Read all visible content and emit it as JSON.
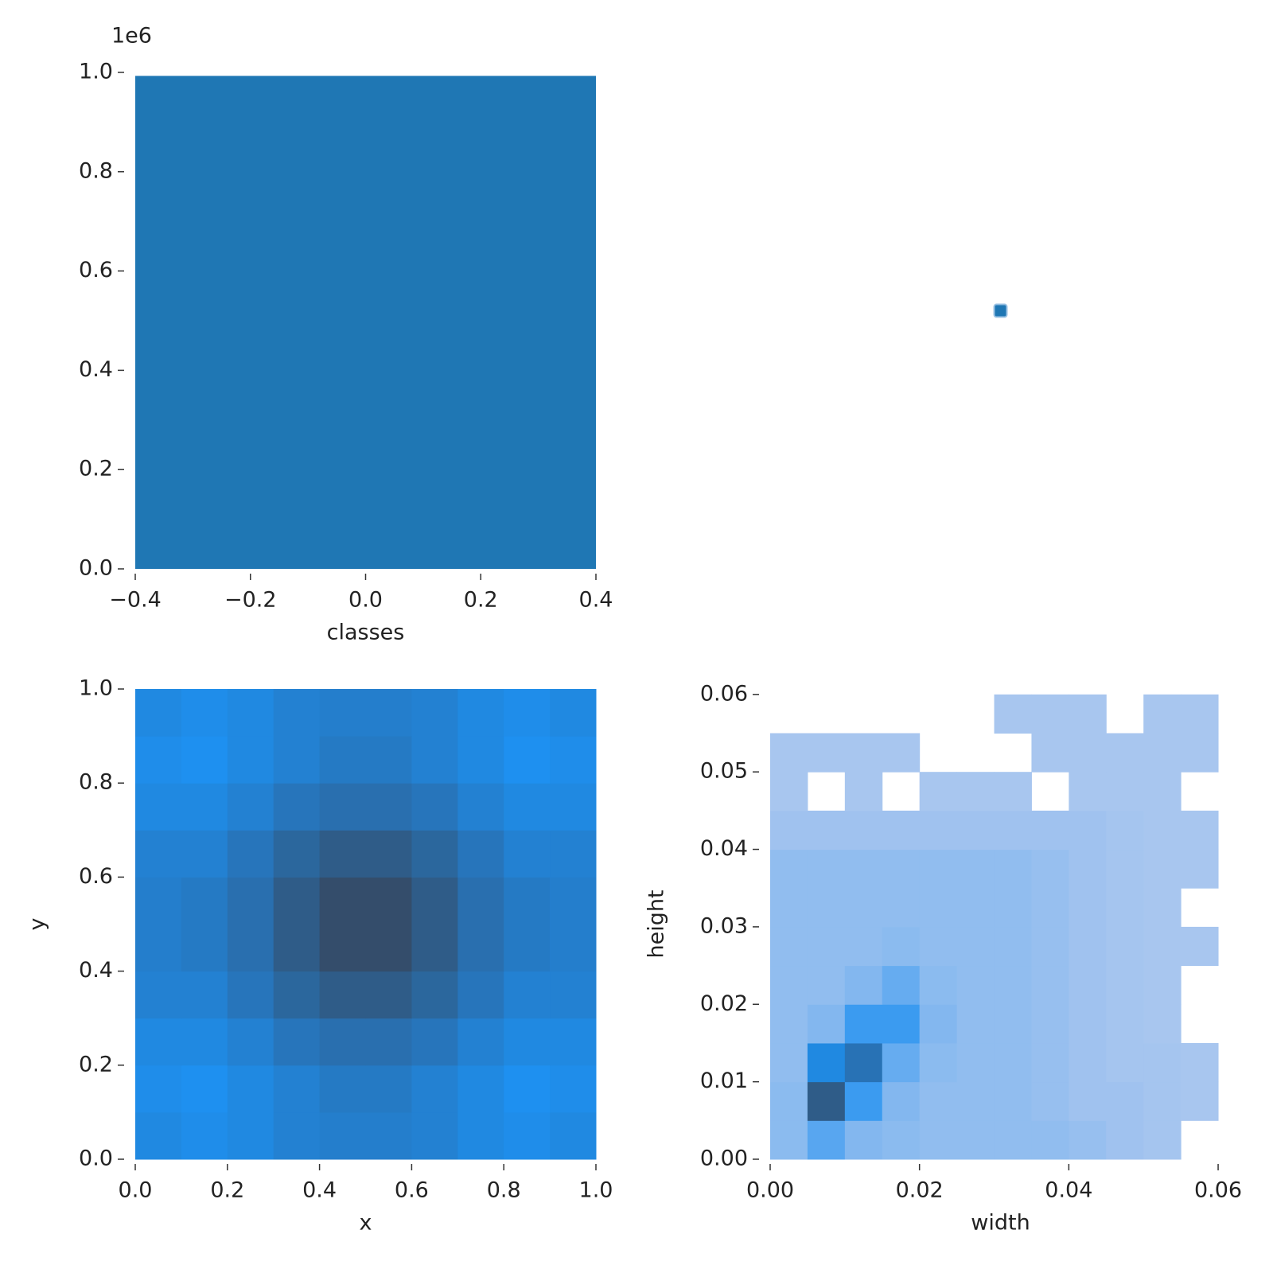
{
  "chart_data": [
    {
      "type": "bar",
      "x": [
        0
      ],
      "values": [
        993000
      ],
      "bar_width": 0.8,
      "color": "#1f77b4",
      "x_label": "classes",
      "y_offset_label": "1e6",
      "xlim": [
        -0.4,
        0.4
      ],
      "xticks": [
        {
          "value": -0.4,
          "label": "−0.4"
        },
        {
          "value": -0.2,
          "label": "−0.2"
        },
        {
          "value": 0,
          "label": "0.0"
        },
        0.2,
        0.4
      ],
      "ylim": [
        0,
        1000000
      ],
      "yticks": [
        {
          "value": 0,
          "label": "0.0"
        },
        {
          "value": 200000,
          "label": "0.2"
        },
        {
          "value": 400000,
          "label": "0.4"
        },
        {
          "value": 600000,
          "label": "0.6"
        },
        {
          "value": 800000,
          "label": "0.8"
        },
        {
          "value": 1000000,
          "label": "1.0"
        }
      ]
    },
    {
      "type": "scatter",
      "x": [
        0.5
      ],
      "y": [
        0.52
      ],
      "xlim": [
        0,
        1
      ],
      "ylim": [
        0,
        1
      ],
      "color": "#1f77b4"
    },
    {
      "type": "hist2d",
      "x_label": "x",
      "y_label": "y",
      "cmap": [
        "#aec8ef",
        "#1e90f0",
        "#36465c"
      ],
      "xbins": [
        0,
        0.1,
        0.2,
        0.3,
        0.4,
        0.5,
        0.6,
        0.7,
        0.8,
        0.9,
        1
      ],
      "ybins": [
        0,
        0.1,
        0.2,
        0.3,
        0.4,
        0.5,
        0.6,
        0.7,
        0.8,
        0.9,
        1
      ],
      "values": [
        [
          0.55,
          0.52,
          0.55,
          0.6,
          0.62,
          0.62,
          0.6,
          0.55,
          0.52,
          0.55
        ],
        [
          0.52,
          0.5,
          0.55,
          0.6,
          0.65,
          0.65,
          0.6,
          0.55,
          0.5,
          0.52
        ],
        [
          0.55,
          0.55,
          0.6,
          0.68,
          0.72,
          0.72,
          0.68,
          0.6,
          0.55,
          0.55
        ],
        [
          0.6,
          0.6,
          0.68,
          0.78,
          0.85,
          0.85,
          0.78,
          0.68,
          0.6,
          0.6
        ],
        [
          0.62,
          0.65,
          0.72,
          0.85,
          0.95,
          0.95,
          0.85,
          0.72,
          0.65,
          0.62
        ],
        [
          0.62,
          0.65,
          0.72,
          0.85,
          0.95,
          0.95,
          0.85,
          0.72,
          0.65,
          0.62
        ],
        [
          0.6,
          0.6,
          0.68,
          0.78,
          0.85,
          0.85,
          0.78,
          0.68,
          0.6,
          0.6
        ],
        [
          0.55,
          0.55,
          0.6,
          0.68,
          0.72,
          0.72,
          0.68,
          0.6,
          0.55,
          0.55
        ],
        [
          0.52,
          0.5,
          0.55,
          0.6,
          0.65,
          0.65,
          0.6,
          0.55,
          0.5,
          0.52
        ],
        [
          0.55,
          0.52,
          0.55,
          0.6,
          0.62,
          0.62,
          0.6,
          0.55,
          0.52,
          0.55
        ]
      ],
      "xlim": [
        0,
        1
      ],
      "xticks": [
        {
          "value": 0,
          "label": "0.0"
        },
        0.2,
        0.4,
        0.6,
        0.8,
        {
          "value": 1,
          "label": "1.0"
        }
      ],
      "ylim": [
        0,
        1
      ],
      "yticks": [
        {
          "value": 0,
          "label": "0.0"
        },
        0.2,
        0.4,
        0.6,
        0.8,
        {
          "value": 1,
          "label": "1.0"
        }
      ]
    },
    {
      "type": "hist2d",
      "x_label": "width",
      "y_label": "height",
      "cmap": [
        "#aec8ef",
        "#1e90f0",
        "#36465c"
      ],
      "xbins": [
        0,
        0.005,
        0.01,
        0.015,
        0.02,
        0.025,
        0.03,
        0.035,
        0.04,
        0.045,
        0.05,
        0.055,
        0.06
      ],
      "ybins": [
        0,
        0.005,
        0.01,
        0.015,
        0.02,
        0.025,
        0.03,
        0.035,
        0.04,
        0.045,
        0.05,
        0.055,
        0.06
      ],
      "values": [
        [
          0.12,
          0.3,
          0.15,
          0.12,
          0.1,
          0.1,
          0.1,
          0.1,
          0.08,
          0.05,
          0.03,
          null
        ],
        [
          0.12,
          0.85,
          0.4,
          0.15,
          0.1,
          0.1,
          0.1,
          0.08,
          0.05,
          0.05,
          0.03,
          0.02
        ],
        [
          0.1,
          0.55,
          0.7,
          0.25,
          0.12,
          0.1,
          0.1,
          0.08,
          0.05,
          0.03,
          0.03,
          0.02
        ],
        [
          0.1,
          0.15,
          0.4,
          0.4,
          0.15,
          0.1,
          0.1,
          0.08,
          0.05,
          0.03,
          0.02,
          null
        ],
        [
          0.1,
          0.1,
          0.15,
          0.25,
          0.12,
          0.1,
          0.1,
          0.08,
          0.05,
          0.03,
          0.02,
          null
        ],
        [
          0.1,
          0.1,
          0.1,
          0.12,
          0.1,
          0.1,
          0.1,
          0.08,
          0.05,
          0.03,
          0.02,
          0.02
        ],
        [
          0.1,
          0.1,
          0.1,
          0.1,
          0.1,
          0.1,
          0.1,
          0.08,
          0.05,
          0.03,
          0.02,
          null
        ],
        [
          0.1,
          0.1,
          0.1,
          0.1,
          0.1,
          0.1,
          0.1,
          0.08,
          0.05,
          0.03,
          0.02,
          0.02
        ],
        [
          0.05,
          0.05,
          0.05,
          0.05,
          0.05,
          0.05,
          0.05,
          0.05,
          0.05,
          0.03,
          0.02,
          0.02
        ],
        [
          0.02,
          null,
          0.02,
          null,
          0.02,
          0.02,
          0.02,
          null,
          0.02,
          0.02,
          0.02,
          null
        ],
        [
          0.02,
          0.02,
          0.02,
          0.02,
          null,
          null,
          null,
          0.02,
          0.02,
          0.02,
          0.02,
          0.02
        ],
        [
          null,
          null,
          null,
          null,
          null,
          null,
          0.02,
          0.02,
          0.02,
          null,
          0.02,
          0.02
        ]
      ],
      "xlim": [
        0,
        0.0617
      ],
      "xticks": [
        {
          "value": 0,
          "label": "0.00"
        },
        {
          "value": 0.02,
          "label": "0.02"
        },
        {
          "value": 0.04,
          "label": "0.04"
        },
        {
          "value": 0.06,
          "label": "0.06"
        }
      ],
      "ylim": [
        0,
        0.0607
      ],
      "yticks": [
        {
          "value": 0,
          "label": "0.00"
        },
        {
          "value": 0.01,
          "label": "0.01"
        },
        {
          "value": 0.02,
          "label": "0.02"
        },
        {
          "value": 0.03,
          "label": "0.03"
        },
        {
          "value": 0.04,
          "label": "0.04"
        },
        {
          "value": 0.05,
          "label": "0.05"
        },
        {
          "value": 0.06,
          "label": "0.06"
        }
      ]
    }
  ]
}
